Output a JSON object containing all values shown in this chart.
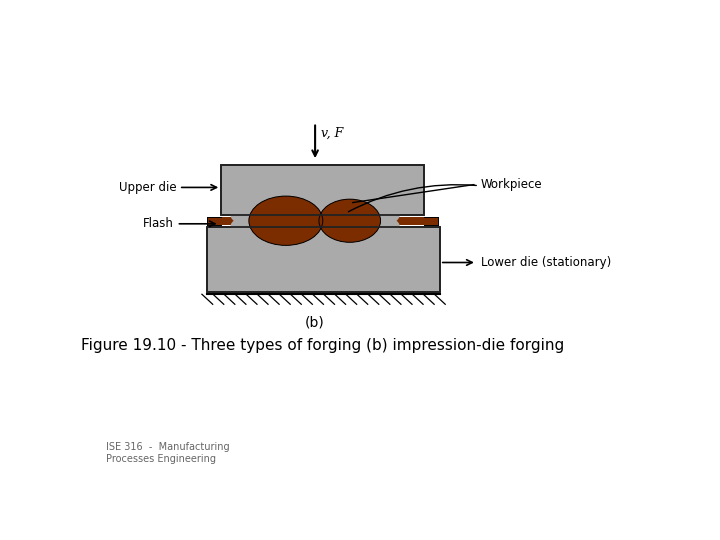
{
  "title": "Figure 19.10 - Three types of forging (b) impression-die forging",
  "subtitle": "ISE 316  -  Manufacturing\nProcesses Engineering",
  "bg_color": "#ffffff",
  "die_color": "#aaaaaa",
  "die_edge_color": "#222222",
  "workpiece_color": "#7B2D00",
  "text_color": "#000000",
  "label_b": "(b)",
  "label_vF": "v, F",
  "label_upper_die": "Upper die",
  "label_flash": "Flash",
  "label_workpiece": "Workpiece",
  "label_lower_die": "Lower die (stationary)"
}
